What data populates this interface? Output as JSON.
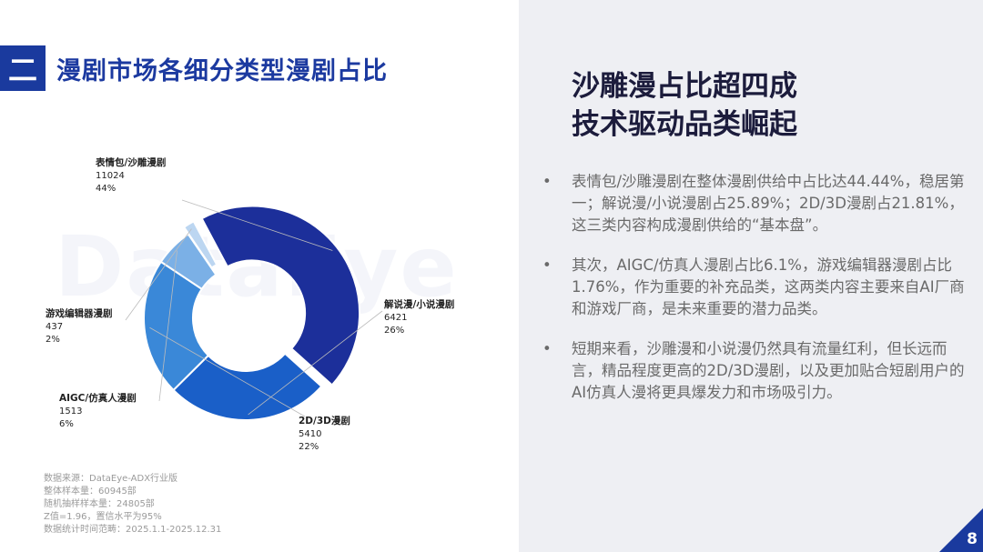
{
  "header": {
    "section_number": "二",
    "title": "漫剧市场各细分类型漫剧占比"
  },
  "watermark": "DataEye",
  "chart_data": {
    "type": "pie",
    "donut": true,
    "slices": [
      {
        "name": "表情包/沙雕漫剧",
        "value": 11024,
        "percent": "44%",
        "color": "#1c2f9a",
        "explode": 1
      },
      {
        "name": "解说漫/小说漫剧",
        "value": 6421,
        "percent": "26%",
        "color": "#1a5fc8",
        "explode": 0
      },
      {
        "name": "2D/3D漫剧",
        "value": 5410,
        "percent": "22%",
        "color": "#3a88d8",
        "explode": 0
      },
      {
        "name": "AIGC/仿真人漫剧",
        "value": 1513,
        "percent": "6%",
        "color": "#7bb0e6",
        "explode": 0
      },
      {
        "name": "游戏编辑器漫剧",
        "value": 437,
        "percent": "2%",
        "color": "#bcd6f1",
        "explode": 1
      }
    ]
  },
  "notes": [
    "数据来源：DataEye-ADX行业版",
    "整体样本量：60945部",
    "随机抽样样本量：24805部",
    "Z值=1.96，置信水平为95%",
    "数据统计时间范畴：2025.1.1-2025.12.31"
  ],
  "right": {
    "headline": [
      "沙雕漫占比超四成",
      "技术驱动品类崛起"
    ],
    "bullet_marker": "•",
    "bullets": [
      "表情包/沙雕漫剧在整体漫剧供给中占比达44.44%，稳居第一；解说漫/小说漫剧占25.89%；2D/3D漫剧占21.81%，这三类内容构成漫剧供给的“基本盘”。",
      "其次，AIGC/仿真人漫剧占比6.1%，游戏编辑器漫剧占比1.76%，作为重要的补充品类，这两类内容主要来自AI厂商和游戏厂商，是未来重要的潜力品类。",
      "短期来看，沙雕漫和小说漫仍然具有流量红利，但长远而言，精品程度更高的2D/3D漫剧，以及更加贴合短剧用户的AI仿真人漫将更具爆发力和市场吸引力。"
    ]
  },
  "page_number": "8"
}
